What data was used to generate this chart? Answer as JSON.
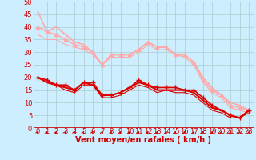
{
  "title": "",
  "xlabel": "Vent moyen/en rafales ( km/h )",
  "background_color": "#cceeff",
  "grid_color": "#aacccc",
  "xlim": [
    -0.5,
    23.5
  ],
  "ylim": [
    0,
    50
  ],
  "yticks": [
    0,
    5,
    10,
    15,
    20,
    25,
    30,
    35,
    40,
    45,
    50
  ],
  "xticks": [
    0,
    1,
    2,
    3,
    4,
    5,
    6,
    7,
    8,
    9,
    10,
    11,
    12,
    13,
    14,
    15,
    16,
    17,
    18,
    19,
    20,
    21,
    22,
    23
  ],
  "series": [
    {
      "x": [
        0,
        1,
        2,
        3,
        4,
        5,
        6,
        7,
        8,
        9,
        10,
        11,
        12,
        13,
        14,
        15,
        16,
        17,
        18,
        19,
        20,
        21,
        22,
        23
      ],
      "y": [
        46,
        38,
        40,
        37,
        34,
        33,
        30,
        25,
        29,
        29,
        29,
        31,
        34,
        32,
        32,
        29,
        29,
        26,
        20,
        16,
        13,
        10,
        9,
        7
      ],
      "color": "#ffaaaa",
      "marker": null,
      "lw": 1.2,
      "ms": 0,
      "zorder": 2
    },
    {
      "x": [
        0,
        1,
        2,
        3,
        4,
        5,
        6,
        7,
        8,
        9,
        10,
        11,
        12,
        13,
        14,
        15,
        16,
        17,
        18,
        19,
        20,
        21,
        22,
        23
      ],
      "y": [
        40,
        38,
        37,
        35,
        33,
        32,
        30,
        25,
        29,
        29,
        29,
        31,
        34,
        32,
        32,
        29,
        29,
        26,
        19,
        15,
        13,
        9,
        8,
        7
      ],
      "color": "#ffaaaa",
      "marker": "^",
      "lw": 1.2,
      "ms": 3,
      "zorder": 3
    },
    {
      "x": [
        0,
        1,
        2,
        3,
        4,
        5,
        6,
        7,
        8,
        9,
        10,
        11,
        12,
        13,
        14,
        15,
        16,
        17,
        18,
        19,
        20,
        21,
        22,
        23
      ],
      "y": [
        37,
        35,
        35,
        33,
        32,
        31,
        29,
        25,
        28,
        28,
        28,
        30,
        33,
        31,
        31,
        29,
        28,
        25,
        18,
        14,
        12,
        8,
        7,
        6
      ],
      "color": "#ffaaaa",
      "marker": null,
      "lw": 0.8,
      "ms": 0,
      "zorder": 2
    },
    {
      "x": [
        0,
        1,
        2,
        3,
        4,
        5,
        6,
        7,
        8,
        9,
        10,
        11,
        12,
        13,
        14,
        15,
        16,
        17,
        18,
        19,
        20,
        21,
        22,
        23
      ],
      "y": [
        20,
        19,
        17,
        17,
        15,
        18,
        18,
        13,
        13,
        14,
        16,
        19,
        17,
        16,
        16,
        16,
        15,
        15,
        12,
        9,
        7,
        5,
        4,
        7
      ],
      "color": "#dd0000",
      "marker": "+",
      "lw": 1.2,
      "ms": 4,
      "zorder": 4
    },
    {
      "x": [
        0,
        1,
        2,
        3,
        4,
        5,
        6,
        7,
        8,
        9,
        10,
        11,
        12,
        13,
        14,
        15,
        16,
        17,
        18,
        19,
        20,
        21,
        22,
        23
      ],
      "y": [
        20,
        18,
        17,
        16,
        15,
        18,
        17,
        13,
        13,
        14,
        16,
        18,
        17,
        15,
        15,
        15,
        15,
        14,
        11,
        8,
        7,
        5,
        4,
        7
      ],
      "color": "#dd0000",
      "marker": null,
      "lw": 1.5,
      "ms": 0,
      "zorder": 3
    },
    {
      "x": [
        0,
        1,
        2,
        3,
        4,
        5,
        6,
        7,
        8,
        9,
        10,
        11,
        12,
        13,
        14,
        15,
        16,
        17,
        18,
        19,
        20,
        21,
        22,
        23
      ],
      "y": [
        20,
        18,
        17,
        15,
        14,
        17,
        17,
        12,
        12,
        13,
        15,
        17,
        16,
        14,
        15,
        14,
        14,
        13,
        10,
        7,
        6,
        4,
        4,
        6
      ],
      "color": "#dd0000",
      "marker": null,
      "lw": 0.8,
      "ms": 0,
      "zorder": 2
    }
  ],
  "arrow_color": "#cc0000",
  "xlabel_color": "#cc0000",
  "xlabel_fontsize": 7,
  "tick_label_color": "#cc0000",
  "tick_fontsize": 6,
  "arrow_angles": [
    45,
    50,
    50,
    45,
    50,
    45,
    45,
    60,
    60,
    60,
    55,
    45,
    50,
    60,
    60,
    60,
    70,
    70,
    70,
    70,
    70,
    75,
    80,
    85
  ]
}
